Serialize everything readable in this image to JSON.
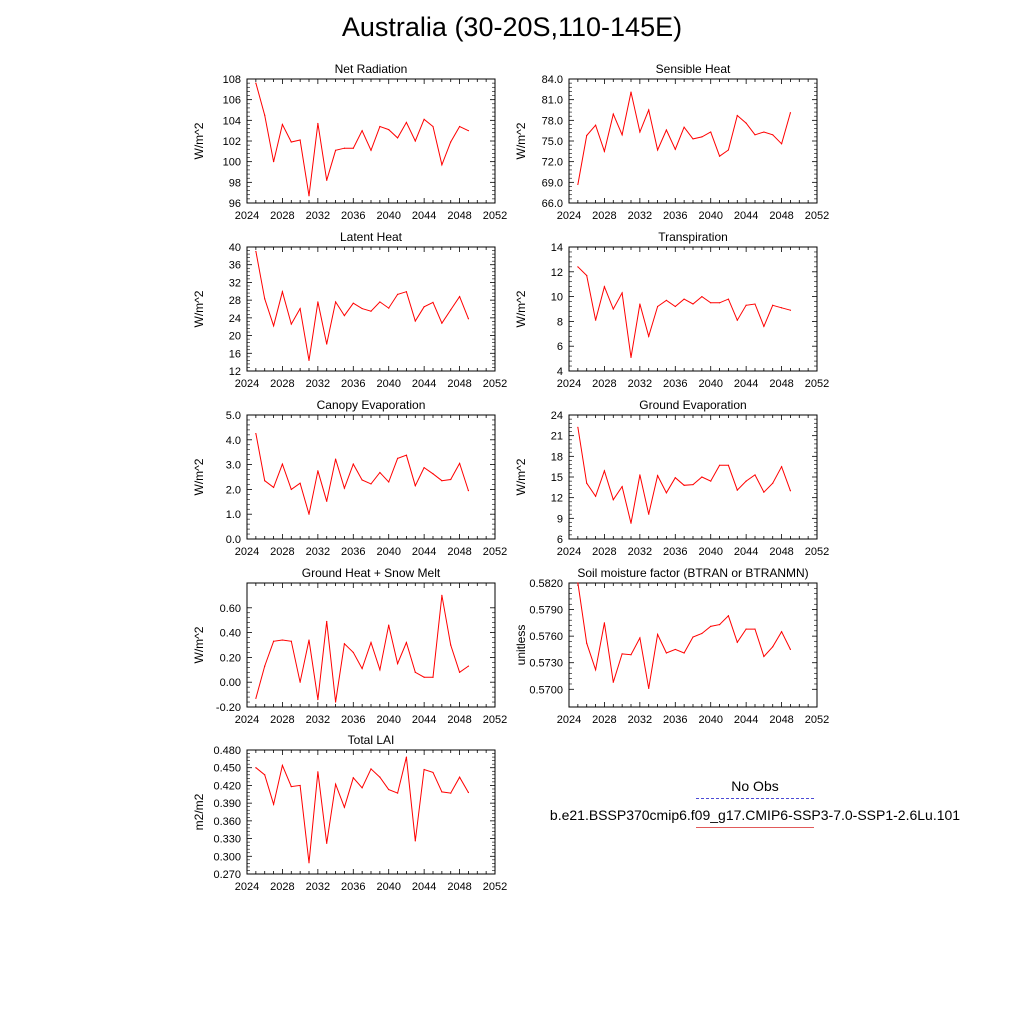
{
  "title": "Australia (30-20S,110-145E)",
  "legend": {
    "obs_label": "No Obs",
    "model_label": "b.e21.BSSP370cmip6.f09_g17.CMIP6-SSP3-7.0-SSP1-2.6Lu.101",
    "obs_color": "#4b4bd6",
    "model_color": "#ff0000"
  },
  "chart_data": [
    {
      "type": "line",
      "title": "Net Radiation",
      "ylabel": "W/m^2",
      "xlim": [
        2024,
        2052
      ],
      "xticks": [
        "2024",
        "2028",
        "2032",
        "2036",
        "2040",
        "2044",
        "2048",
        "2052"
      ],
      "ylim": [
        96,
        108
      ],
      "yticks": [
        "96",
        "98",
        "100",
        "102",
        "104",
        "106",
        "108"
      ],
      "series": [
        {
          "color": "#ff0000",
          "x": [
            2025,
            2026,
            2027,
            2028,
            2029,
            2030,
            2031,
            2032,
            2033,
            2034,
            2035,
            2036,
            2037,
            2038,
            2039,
            2040,
            2041,
            2042,
            2043,
            2044,
            2045,
            2046,
            2047,
            2048,
            2049
          ],
          "values": [
            107.6,
            104.5,
            100.0,
            103.6,
            101.9,
            102.1,
            96.7,
            103.7,
            98.2,
            101.1,
            101.3,
            101.3,
            103.0,
            101.1,
            103.4,
            103.1,
            102.3,
            103.8,
            102.0,
            104.1,
            103.4,
            99.7,
            101.9,
            103.4,
            103.0
          ]
        }
      ]
    },
    {
      "type": "line",
      "title": "Sensible Heat",
      "ylabel": "W/m^2",
      "xlim": [
        2024,
        2052
      ],
      "xticks": [
        "2024",
        "2028",
        "2032",
        "2036",
        "2040",
        "2044",
        "2048",
        "2052"
      ],
      "ylim": [
        66,
        84
      ],
      "yticks": [
        "66.0",
        "69.0",
        "72.0",
        "75.0",
        "78.0",
        "81.0",
        "84.0"
      ],
      "series": [
        {
          "color": "#ff0000",
          "x": [
            2025,
            2026,
            2027,
            2028,
            2029,
            2030,
            2031,
            2032,
            2033,
            2034,
            2035,
            2036,
            2037,
            2038,
            2039,
            2040,
            2041,
            2042,
            2043,
            2044,
            2045,
            2046,
            2047,
            2048,
            2049
          ],
          "values": [
            68.7,
            75.8,
            77.3,
            73.5,
            78.9,
            75.9,
            82.1,
            76.3,
            79.5,
            73.7,
            76.6,
            73.8,
            77.0,
            75.3,
            75.6,
            76.3,
            72.8,
            73.7,
            78.7,
            77.6,
            75.9,
            76.3,
            75.9,
            74.6,
            79.1
          ]
        }
      ]
    },
    {
      "type": "line",
      "title": "Latent Heat",
      "ylabel": "W/m^2",
      "xlim": [
        2024,
        2052
      ],
      "xticks": [
        "2024",
        "2028",
        "2032",
        "2036",
        "2040",
        "2044",
        "2048",
        "2052"
      ],
      "ylim": [
        12,
        40
      ],
      "yticks": [
        "12",
        "16",
        "20",
        "24",
        "28",
        "32",
        "36",
        "40"
      ],
      "series": [
        {
          "color": "#ff0000",
          "x": [
            2025,
            2026,
            2027,
            2028,
            2029,
            2030,
            2031,
            2032,
            2033,
            2034,
            2035,
            2036,
            2037,
            2038,
            2039,
            2040,
            2041,
            2042,
            2043,
            2044,
            2045,
            2046,
            2047,
            2048,
            2049
          ],
          "values": [
            39.0,
            28.3,
            22.2,
            29.9,
            22.6,
            26.1,
            14.4,
            27.6,
            18.1,
            27.6,
            24.5,
            27.3,
            26.1,
            25.5,
            27.6,
            26.2,
            29.3,
            29.9,
            23.3,
            26.5,
            27.5,
            22.8,
            25.8,
            28.8,
            23.8
          ]
        }
      ]
    },
    {
      "type": "line",
      "title": "Transpiration",
      "ylabel": "W/m^2",
      "xlim": [
        2024,
        2052
      ],
      "xticks": [
        "2024",
        "2028",
        "2032",
        "2036",
        "2040",
        "2044",
        "2048",
        "2052"
      ],
      "ylim": [
        4,
        14
      ],
      "yticks": [
        "4",
        "6",
        "8",
        "10",
        "12",
        "14"
      ],
      "series": [
        {
          "color": "#ff0000",
          "x": [
            2025,
            2026,
            2027,
            2028,
            2029,
            2030,
            2031,
            2032,
            2033,
            2034,
            2035,
            2036,
            2037,
            2038,
            2039,
            2040,
            2041,
            2042,
            2043,
            2044,
            2045,
            2046,
            2047,
            2048,
            2049
          ],
          "values": [
            12.4,
            11.7,
            8.1,
            10.8,
            9.0,
            10.3,
            5.1,
            9.4,
            6.8,
            9.2,
            9.7,
            9.2,
            9.8,
            9.4,
            10.0,
            9.5,
            9.5,
            9.8,
            8.1,
            9.3,
            9.4,
            7.6,
            9.3,
            9.1,
            8.9
          ]
        }
      ]
    },
    {
      "type": "line",
      "title": "Canopy Evaporation",
      "ylabel": "W/m^2",
      "xlim": [
        2024,
        2052
      ],
      "xticks": [
        "2024",
        "2028",
        "2032",
        "2036",
        "2040",
        "2044",
        "2048",
        "2052"
      ],
      "ylim": [
        0,
        5
      ],
      "yticks": [
        "0.0",
        "1.0",
        "2.0",
        "3.0",
        "4.0",
        "5.0"
      ],
      "series": [
        {
          "color": "#ff0000",
          "x": [
            2025,
            2026,
            2027,
            2028,
            2029,
            2030,
            2031,
            2032,
            2033,
            2034,
            2035,
            2036,
            2037,
            2038,
            2039,
            2040,
            2041,
            2042,
            2043,
            2044,
            2045,
            2046,
            2047,
            2048,
            2049
          ],
          "values": [
            4.25,
            2.35,
            2.08,
            3.02,
            2.0,
            2.25,
            1.0,
            2.75,
            1.52,
            3.22,
            2.05,
            3.02,
            2.38,
            2.22,
            2.68,
            2.3,
            3.25,
            3.38,
            2.15,
            2.88,
            2.63,
            2.35,
            2.4,
            3.05,
            1.95
          ]
        }
      ]
    },
    {
      "type": "line",
      "title": "Ground Evaporation",
      "ylabel": "W/m^2",
      "xlim": [
        2024,
        2052
      ],
      "xticks": [
        "2024",
        "2028",
        "2032",
        "2036",
        "2040",
        "2044",
        "2048",
        "2052"
      ],
      "ylim": [
        6,
        24
      ],
      "yticks": [
        "6",
        "9",
        "12",
        "15",
        "18",
        "21",
        "24"
      ],
      "series": [
        {
          "color": "#ff0000",
          "x": [
            2025,
            2026,
            2027,
            2028,
            2029,
            2030,
            2031,
            2032,
            2033,
            2034,
            2035,
            2036,
            2037,
            2038,
            2039,
            2040,
            2041,
            2042,
            2043,
            2044,
            2045,
            2046,
            2047,
            2048,
            2049
          ],
          "values": [
            22.2,
            14.1,
            12.2,
            15.9,
            11.7,
            13.6,
            8.3,
            15.3,
            9.6,
            15.2,
            12.7,
            14.9,
            13.8,
            13.9,
            15.0,
            14.4,
            16.7,
            16.7,
            13.1,
            14.4,
            15.3,
            12.8,
            14.1,
            16.5,
            13.0
          ]
        }
      ]
    },
    {
      "type": "line",
      "title": "Ground Heat + Snow Melt",
      "ylabel": "W/m^2",
      "xlim": [
        2024,
        2052
      ],
      "xticks": [
        "2024",
        "2028",
        "2032",
        "2036",
        "2040",
        "2044",
        "2048",
        "2052"
      ],
      "ylim": [
        -0.2,
        0.8
      ],
      "yticks": [
        "-0.20",
        "0.00",
        "0.20",
        "0.40",
        "0.60"
      ],
      "ytick_values": [
        -0.2,
        0.0,
        0.2,
        0.4,
        0.6
      ],
      "series": [
        {
          "color": "#ff0000",
          "x": [
            2025,
            2026,
            2027,
            2028,
            2029,
            2030,
            2031,
            2032,
            2033,
            2034,
            2035,
            2036,
            2037,
            2038,
            2039,
            2040,
            2041,
            2042,
            2043,
            2044,
            2045,
            2046,
            2047,
            2048,
            2049
          ],
          "values": [
            -0.13,
            0.13,
            0.33,
            0.34,
            0.33,
            0.0,
            0.34,
            -0.14,
            0.49,
            -0.16,
            0.31,
            0.24,
            0.11,
            0.32,
            0.1,
            0.46,
            0.15,
            0.32,
            0.08,
            0.04,
            0.04,
            0.7,
            0.3,
            0.08,
            0.13
          ]
        }
      ]
    },
    {
      "type": "line",
      "title": "Soil moisture factor (BTRAN or BTRANMN)",
      "ylabel": "unitless",
      "xlim": [
        2024,
        2052
      ],
      "xticks": [
        "2024",
        "2028",
        "2032",
        "2036",
        "2040",
        "2044",
        "2048",
        "2052"
      ],
      "ylim": [
        0.568,
        0.582
      ],
      "yticks": [
        "0.5700",
        "0.5730",
        "0.5760",
        "0.5790",
        "0.5820"
      ],
      "ytick_values": [
        0.57,
        0.573,
        0.576,
        0.579,
        0.582
      ],
      "series": [
        {
          "color": "#ff0000",
          "x": [
            2025,
            2026,
            2027,
            2028,
            2029,
            2030,
            2031,
            2032,
            2033,
            2034,
            2035,
            2036,
            2037,
            2038,
            2039,
            2040,
            2041,
            2042,
            2043,
            2044,
            2045,
            2046,
            2047,
            2048,
            2049
          ],
          "values": [
            0.582,
            0.5752,
            0.5722,
            0.5775,
            0.5708,
            0.574,
            0.5739,
            0.5758,
            0.5701,
            0.5762,
            0.5741,
            0.5745,
            0.5741,
            0.5759,
            0.5763,
            0.5771,
            0.5773,
            0.5783,
            0.5753,
            0.5768,
            0.5768,
            0.5737,
            0.5748,
            0.5765,
            0.5745
          ]
        }
      ]
    },
    {
      "type": "line",
      "title": "Total LAI",
      "ylabel": "m2/m2",
      "xlim": [
        2024,
        2052
      ],
      "xticks": [
        "2024",
        "2028",
        "2032",
        "2036",
        "2040",
        "2044",
        "2048",
        "2052"
      ],
      "ylim": [
        0.27,
        0.48
      ],
      "yticks": [
        "0.270",
        "0.300",
        "0.330",
        "0.360",
        "0.390",
        "0.420",
        "0.450",
        "0.480"
      ],
      "series": [
        {
          "color": "#ff0000",
          "x": [
            2025,
            2026,
            2027,
            2028,
            2029,
            2030,
            2031,
            2032,
            2033,
            2034,
            2035,
            2036,
            2037,
            2038,
            2039,
            2040,
            2041,
            2042,
            2043,
            2044,
            2045,
            2046,
            2047,
            2048,
            2049
          ],
          "values": [
            0.45,
            0.438,
            0.388,
            0.454,
            0.418,
            0.42,
            0.289,
            0.443,
            0.322,
            0.422,
            0.383,
            0.433,
            0.416,
            0.448,
            0.434,
            0.413,
            0.407,
            0.468,
            0.326,
            0.447,
            0.442,
            0.409,
            0.407,
            0.434,
            0.408
          ]
        }
      ]
    }
  ]
}
